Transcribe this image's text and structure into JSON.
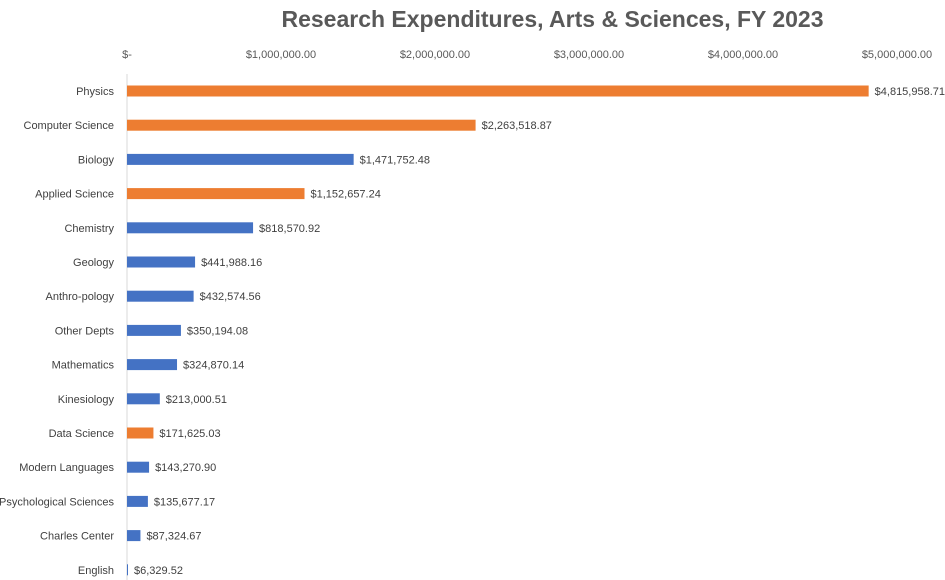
{
  "chart_data": {
    "type": "bar",
    "orientation": "horizontal",
    "title": "Research Expenditures, Arts & Sciences, FY 2023",
    "xlabel": "",
    "ylabel": "",
    "xlim": [
      0,
      5000000
    ],
    "x_ticks": [
      0,
      1000000,
      2000000,
      3000000,
      4000000,
      5000000
    ],
    "x_tick_labels": [
      "$-",
      "$1,000,000.00",
      "$2,000,000.00",
      "$3,000,000.00",
      "$4,000,000.00",
      "$5,000,000.00"
    ],
    "axis_position": "top",
    "grid": false,
    "legend": "none",
    "colors": {
      "highlight": "#ED7D31",
      "default": "#4472C4"
    },
    "categories": [
      "Physics",
      "Computer Science",
      "Biology",
      "Applied Science",
      "Chemistry",
      "Geology",
      "Anthro-pology",
      "Other Depts",
      "Mathematics",
      "Kinesiology",
      "Data Science",
      "Modern Languages",
      "Psychological Sciences",
      "Charles Center",
      "English"
    ],
    "values": [
      4815958.71,
      2263518.87,
      1471752.48,
      1152657.24,
      818570.92,
      441988.16,
      432574.56,
      350194.08,
      324870.14,
      213000.51,
      171625.03,
      143270.9,
      135677.17,
      87324.67,
      6329.52
    ],
    "data_labels": [
      "$4,815,958.71",
      "$2,263,518.87",
      "$1,471,752.48",
      "$1,152,657.24",
      "$818,570.92",
      "$441,988.16",
      "$432,574.56",
      "$350,194.08",
      "$324,870.14",
      "$213,000.51",
      "$171,625.03",
      "$143,270.90",
      "$135,677.17",
      "$87,324.67",
      "$6,329.52"
    ],
    "highlighted": [
      true,
      true,
      false,
      true,
      false,
      false,
      false,
      false,
      false,
      false,
      true,
      false,
      false,
      false,
      false
    ]
  }
}
